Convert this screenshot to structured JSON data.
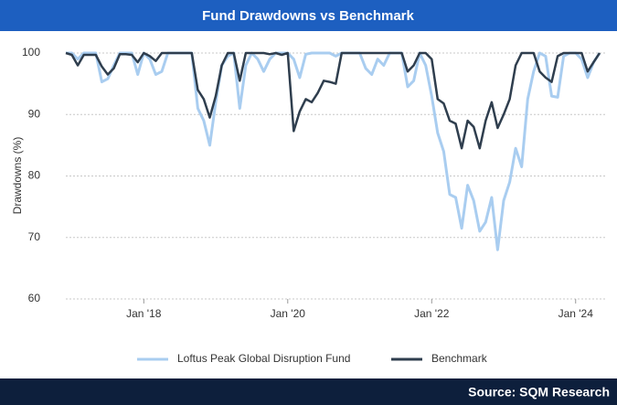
{
  "chart_data": {
    "type": "line",
    "title": "Fund Drawdowns vs Benchmark",
    "ylabel": "Drawdowns (%)",
    "source": "Source: SQM Research",
    "x": [
      "2016-12",
      "2017-01",
      "2017-02",
      "2017-03",
      "2017-04",
      "2017-05",
      "2017-06",
      "2017-07",
      "2017-08",
      "2017-09",
      "2017-10",
      "2017-11",
      "2017-12",
      "2018-01",
      "2018-02",
      "2018-03",
      "2018-04",
      "2018-05",
      "2018-06",
      "2018-07",
      "2018-08",
      "2018-09",
      "2018-10",
      "2018-11",
      "2018-12",
      "2019-01",
      "2019-02",
      "2019-03",
      "2019-04",
      "2019-05",
      "2019-06",
      "2019-07",
      "2019-08",
      "2019-09",
      "2019-10",
      "2019-11",
      "2019-12",
      "2020-01",
      "2020-02",
      "2020-03",
      "2020-04",
      "2020-05",
      "2020-06",
      "2020-07",
      "2020-08",
      "2020-09",
      "2020-10",
      "2020-11",
      "2020-12",
      "2021-01",
      "2021-02",
      "2021-03",
      "2021-04",
      "2021-05",
      "2021-06",
      "2021-07",
      "2021-08",
      "2021-09",
      "2021-10",
      "2021-11",
      "2021-12",
      "2022-01",
      "2022-02",
      "2022-03",
      "2022-04",
      "2022-05",
      "2022-06",
      "2022-07",
      "2022-08",
      "2022-09",
      "2022-10",
      "2022-11",
      "2022-12",
      "2023-01",
      "2023-02",
      "2023-03",
      "2023-04",
      "2023-05",
      "2023-06",
      "2023-07",
      "2023-08",
      "2023-09",
      "2023-10",
      "2023-11",
      "2023-12",
      "2024-01",
      "2024-02",
      "2024-03",
      "2024-04",
      "2024-05"
    ],
    "series": [
      {
        "name": "Loftus Peak Global Disruption Fund",
        "color": "#a9cdf0",
        "values": [
          100,
          100,
          99,
          100,
          100,
          100,
          95.3,
          95.8,
          98,
          100,
          100,
          100,
          96.5,
          100,
          99,
          96.5,
          97,
          100,
          100,
          100,
          100,
          100,
          91,
          89,
          85,
          92,
          98,
          99.5,
          100,
          91,
          98,
          100,
          99,
          97,
          99,
          100,
          100,
          100,
          99,
          96,
          99.8,
          100,
          100,
          100,
          100,
          99.5,
          100,
          100,
          100,
          100,
          97.5,
          96.5,
          99,
          98,
          100,
          100,
          100,
          94.5,
          95.5,
          100,
          98,
          93,
          87,
          84,
          77,
          76.5,
          71.5,
          78.5,
          76,
          71,
          72.5,
          76.5,
          68,
          76,
          79,
          84.5,
          81.5,
          92.5,
          97,
          100,
          99.5,
          93,
          92.8,
          99.5,
          100,
          100,
          99,
          96,
          98.5,
          100
        ]
      },
      {
        "name": "Benchmark",
        "color": "#2f3e4e",
        "values": [
          100,
          99.7,
          98,
          99.7,
          99.7,
          99.7,
          97.8,
          96.5,
          97.5,
          99.8,
          99.8,
          99.7,
          98.5,
          100,
          99.5,
          98.7,
          100,
          100,
          100,
          100,
          100,
          100,
          94,
          92.5,
          89.5,
          93,
          98,
          100,
          100,
          95.5,
          100,
          100,
          100,
          100,
          99.8,
          100,
          99.7,
          100,
          87.3,
          90.5,
          92.5,
          92,
          93.5,
          95.5,
          95.3,
          95,
          100,
          100,
          100,
          100,
          100,
          100,
          100,
          100,
          100,
          100,
          100,
          97,
          98,
          100,
          100,
          99,
          92.5,
          91.8,
          89,
          88.5,
          84.5,
          89,
          88,
          84.5,
          89,
          92,
          87.8,
          90,
          92.5,
          98,
          100,
          100,
          100,
          97,
          96,
          95.3,
          99.5,
          100,
          100,
          100,
          100,
          97,
          98.5,
          100
        ]
      }
    ],
    "ylim": [
      60,
      100
    ],
    "yticks": [
      60,
      70,
      80,
      90,
      100
    ],
    "xticks": [
      {
        "value": "2018-01",
        "label": "Jan '18"
      },
      {
        "value": "2020-01",
        "label": "Jan '20"
      },
      {
        "value": "2022-01",
        "label": "Jan '22"
      },
      {
        "value": "2024-01",
        "label": "Jan '24"
      }
    ],
    "grid": true
  }
}
